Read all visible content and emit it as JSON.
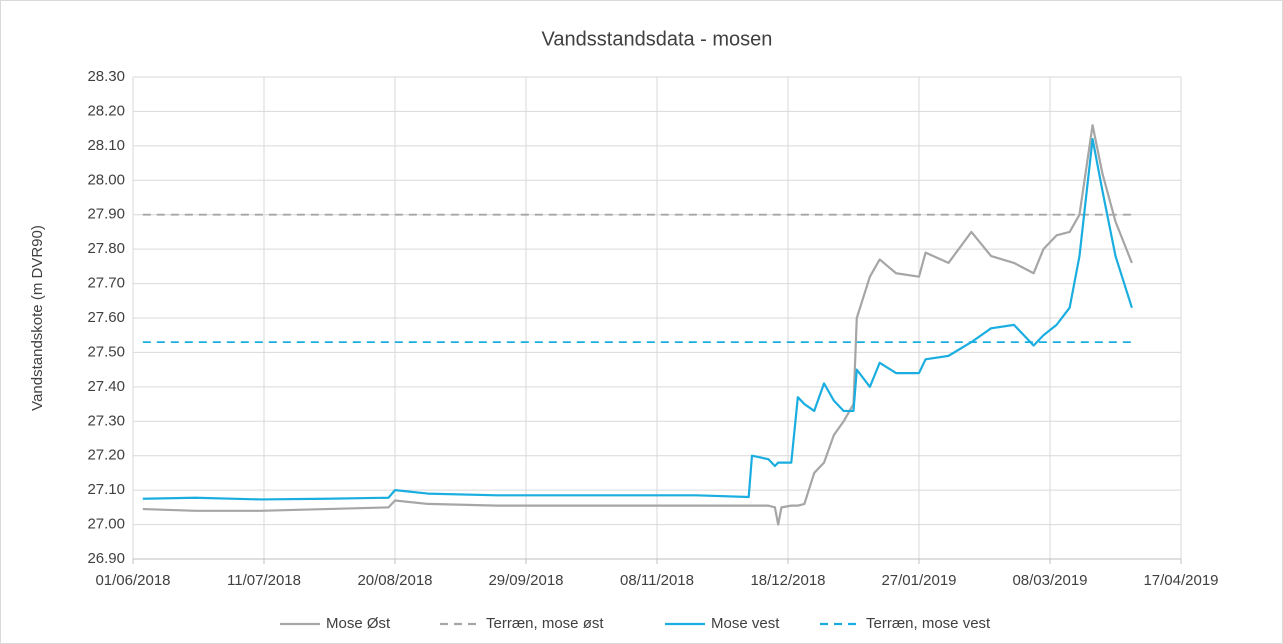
{
  "chart_data": {
    "type": "line",
    "title": "Vandsstandsdata - mosen",
    "y_label": "Vandstandskote (m DVR90)",
    "x": [
      "04/06/2018",
      "20/06/2018",
      "10/07/2018",
      "30/07/2018",
      "18/08/2018",
      "20/08/2018",
      "30/08/2018",
      "20/09/2018",
      "20/10/2018",
      "20/11/2018",
      "06/12/2018",
      "07/12/2018",
      "12/12/2018",
      "14/12/2018",
      "15/12/2018",
      "16/12/2018",
      "19/12/2018",
      "21/12/2018",
      "23/12/2018",
      "26/12/2018",
      "29/12/2018",
      "01/01/2019",
      "04/01/2019",
      "07/01/2019",
      "08/01/2019",
      "12/01/2019",
      "15/01/2019",
      "20/01/2019",
      "27/01/2019",
      "29/01/2019",
      "05/02/2019",
      "12/02/2019",
      "18/02/2019",
      "25/02/2019",
      "03/03/2019",
      "06/03/2019",
      "10/03/2019",
      "14/03/2019",
      "17/03/2019",
      "21/03/2019",
      "24/03/2019",
      "28/03/2019",
      "02/04/2019"
    ],
    "series": [
      {
        "name": "Mose Øst",
        "color": "#a6a6a6",
        "dash": false,
        "values": [
          27.045,
          27.04,
          27.04,
          27.045,
          27.05,
          27.07,
          27.06,
          27.055,
          27.055,
          27.055,
          27.055,
          27.055,
          27.055,
          27.05,
          27.0,
          27.05,
          27.055,
          27.055,
          27.06,
          27.15,
          27.18,
          27.26,
          27.3,
          27.35,
          27.6,
          27.72,
          27.77,
          27.73,
          27.72,
          27.79,
          27.76,
          27.85,
          27.78,
          27.76,
          27.73,
          27.8,
          27.84,
          27.85,
          27.9,
          28.16,
          28.02,
          27.88,
          27.76
        ]
      },
      {
        "name": "Terræn, mose øst",
        "color": "#a6a6a6",
        "dash": true,
        "values": [
          27.9,
          27.9,
          27.9,
          27.9,
          27.9,
          27.9,
          27.9,
          27.9,
          27.9,
          27.9,
          27.9,
          27.9,
          27.9,
          27.9,
          27.9,
          27.9,
          27.9,
          27.9,
          27.9,
          27.9,
          27.9,
          27.9,
          27.9,
          27.9,
          27.9,
          27.9,
          27.9,
          27.9,
          27.9,
          27.9,
          27.9,
          27.9,
          27.9,
          27.9,
          27.9,
          27.9,
          27.9,
          27.9,
          27.9,
          27.9,
          27.9,
          27.9,
          27.9
        ]
      },
      {
        "name": "Mose vest",
        "color": "#1aaee0",
        "dash": false,
        "values": [
          27.075,
          27.078,
          27.073,
          27.075,
          27.078,
          27.1,
          27.09,
          27.085,
          27.085,
          27.085,
          27.08,
          27.2,
          27.19,
          27.17,
          27.18,
          27.18,
          27.18,
          27.37,
          27.35,
          27.33,
          27.41,
          27.36,
          27.33,
          27.33,
          27.45,
          27.4,
          27.47,
          27.44,
          27.44,
          27.48,
          27.49,
          27.53,
          27.57,
          27.58,
          27.52,
          27.55,
          27.58,
          27.63,
          27.78,
          28.12,
          27.97,
          27.78,
          27.63
        ]
      },
      {
        "name": "Terræn, mose vest",
        "color": "#1aaee0",
        "dash": true,
        "values": [
          27.53,
          27.53,
          27.53,
          27.53,
          27.53,
          27.53,
          27.53,
          27.53,
          27.53,
          27.53,
          27.53,
          27.53,
          27.53,
          27.53,
          27.53,
          27.53,
          27.53,
          27.53,
          27.53,
          27.53,
          27.53,
          27.53,
          27.53,
          27.53,
          27.53,
          27.53,
          27.53,
          27.53,
          27.53,
          27.53,
          27.53,
          27.53,
          27.53,
          27.53,
          27.53,
          27.53,
          27.53,
          27.53,
          27.53,
          27.53,
          27.53,
          27.53,
          27.53
        ]
      }
    ],
    "xlim": [
      "01/06/2018",
      "17/04/2019"
    ],
    "xticks": [
      "01/06/2018",
      "11/07/2018",
      "20/08/2018",
      "29/09/2018",
      "08/11/2018",
      "18/12/2018",
      "27/01/2019",
      "08/03/2019",
      "17/04/2019"
    ],
    "ylim": [
      26.9,
      28.3
    ],
    "yticks": [
      {
        "value": 26.9,
        "label": "26.90"
      },
      {
        "value": 27.0,
        "label": "27.00"
      },
      {
        "value": 27.1,
        "label": "27.10"
      },
      {
        "value": 27.2,
        "label": "27.20"
      },
      {
        "value": 27.3,
        "label": "27.30"
      },
      {
        "value": 27.4,
        "label": "27.40"
      },
      {
        "value": 27.5,
        "label": "27.50"
      },
      {
        "value": 27.6,
        "label": "27.60"
      },
      {
        "value": 27.7,
        "label": "27.70"
      },
      {
        "value": 27.8,
        "label": "27.80"
      },
      {
        "value": 27.9,
        "label": "27.90"
      },
      {
        "value": 28.0,
        "label": "28.00"
      },
      {
        "value": 28.1,
        "label": "28.10"
      },
      {
        "value": 28.2,
        "label": "28.20"
      },
      {
        "value": 28.3,
        "label": "28.30"
      }
    ],
    "grid": true,
    "legend": "bottom"
  }
}
